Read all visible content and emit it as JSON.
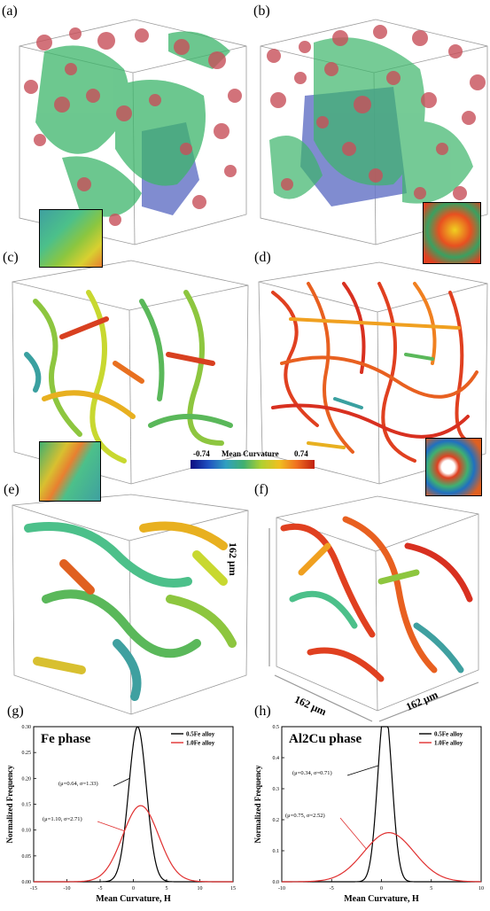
{
  "panels": {
    "a": "(a)",
    "b": "(b)",
    "c": "(c)",
    "d": "(d)",
    "e": "(e)",
    "f": "(f)",
    "g": "(g)",
    "h": "(h)"
  },
  "colorbar": {
    "min": "-0.74",
    "title": "Mean Curvature",
    "max": "0.74"
  },
  "dimensions": {
    "height": "162 μm",
    "width_left": "162 μm",
    "width_right": "162 μm"
  },
  "colors": {
    "fe": "#3cb56a",
    "al2cu": "#c8505a",
    "pore": "#6a78c8",
    "series_black": "#000000",
    "series_red": "#e03030"
  },
  "chart_data": [
    {
      "type": "line",
      "title": "Fe phase",
      "xlabel": "Mean Curvature, H",
      "ylabel": "Normalized Frequency",
      "xlim": [
        -15,
        15
      ],
      "ylim": [
        0,
        0.3
      ],
      "xticks": [
        "-15",
        "-10",
        "-5",
        "0",
        "5",
        "10",
        "15"
      ],
      "yticks": [
        "0.00",
        "0.05",
        "0.10",
        "0.15",
        "0.20",
        "0.25",
        "0.30"
      ],
      "legend": "top-right",
      "series": [
        {
          "name": "0.5Fe alloy",
          "color": "#000000",
          "mu": 0.64,
          "sigma": 1.33,
          "annotation": "(μ=0.64, σ=1.33)"
        },
        {
          "name": "1.0Fe alloy",
          "color": "#e03030",
          "mu": 1.1,
          "sigma": 2.71,
          "annotation": "(μ=1.10, σ=2.71)"
        }
      ]
    },
    {
      "type": "line",
      "title": "Al2Cu phase",
      "xlabel": "Mean Curvature, H",
      "ylabel": "Normalized Frequency",
      "xlim": [
        -10,
        10
      ],
      "ylim": [
        0,
        0.5
      ],
      "xticks": [
        "-10",
        "-5",
        "0",
        "5",
        "10"
      ],
      "yticks": [
        "0.0",
        "0.1",
        "0.2",
        "0.3",
        "0.4",
        "0.5"
      ],
      "legend": "top-right",
      "series": [
        {
          "name": "0.5Fe alloy",
          "color": "#000000",
          "mu": 0.34,
          "sigma": 0.71,
          "annotation": "(μ=0.34, σ=0.71)"
        },
        {
          "name": "1.0Fe alloy",
          "color": "#e03030",
          "mu": 0.75,
          "sigma": 2.52,
          "annotation": "(μ=0.75, σ=2.52)"
        }
      ]
    }
  ]
}
